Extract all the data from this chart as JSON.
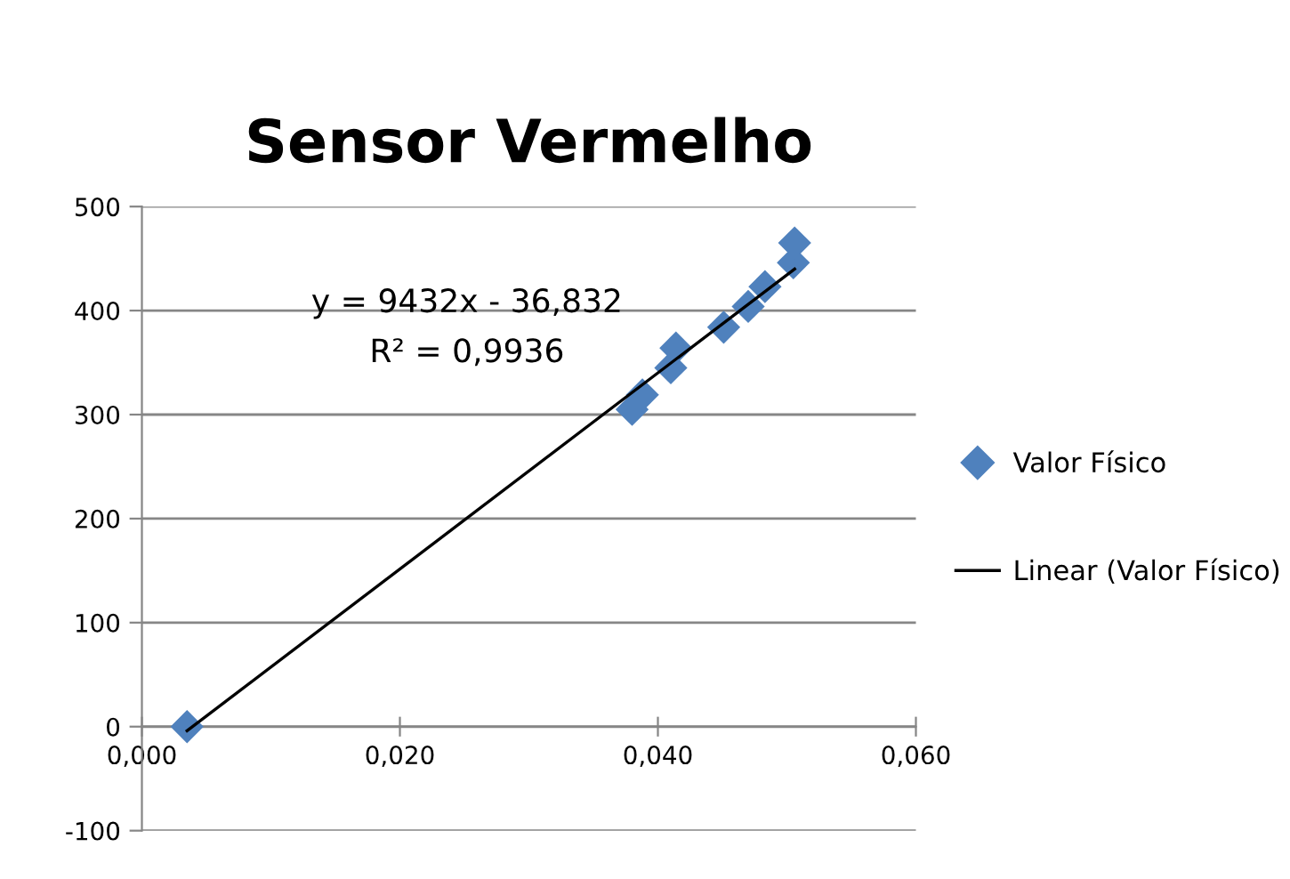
{
  "chart_data": {
    "type": "scatter",
    "title": "Sensor Vermelho",
    "series": [
      {
        "name": "Valor Físico",
        "color": "#4f81bd",
        "marker": "diamond",
        "x": [
          0.0035,
          0.038,
          0.0388,
          0.041,
          0.0414,
          0.0451,
          0.047,
          0.0483,
          0.0505,
          0.0506
        ],
        "values": [
          0,
          305,
          319,
          345,
          364,
          384,
          404,
          423,
          446,
          465
        ]
      },
      {
        "name": "Linear (Valor Físico)",
        "type": "line",
        "color": "#000000",
        "marker": "none",
        "line_style": "solid",
        "x": [
          0.0035,
          0.0506
        ],
        "values": [
          -4,
          440
        ]
      }
    ],
    "xlim": [
      0,
      0.06
    ],
    "xticks": [
      {
        "value": 0,
        "label": "0,000"
      },
      {
        "value": 0.02,
        "label": "0,020"
      },
      {
        "value": 0.04,
        "label": "0,040"
      },
      {
        "value": 0.06,
        "label": "0,060"
      }
    ],
    "ylim": [
      -100,
      500
    ],
    "yticks": [
      -100,
      0,
      100,
      200,
      300,
      400,
      500
    ],
    "grid": "y",
    "legend": "right",
    "annotations": [
      "y = 9432x - 36,832",
      "R² = 0,9936"
    ]
  }
}
